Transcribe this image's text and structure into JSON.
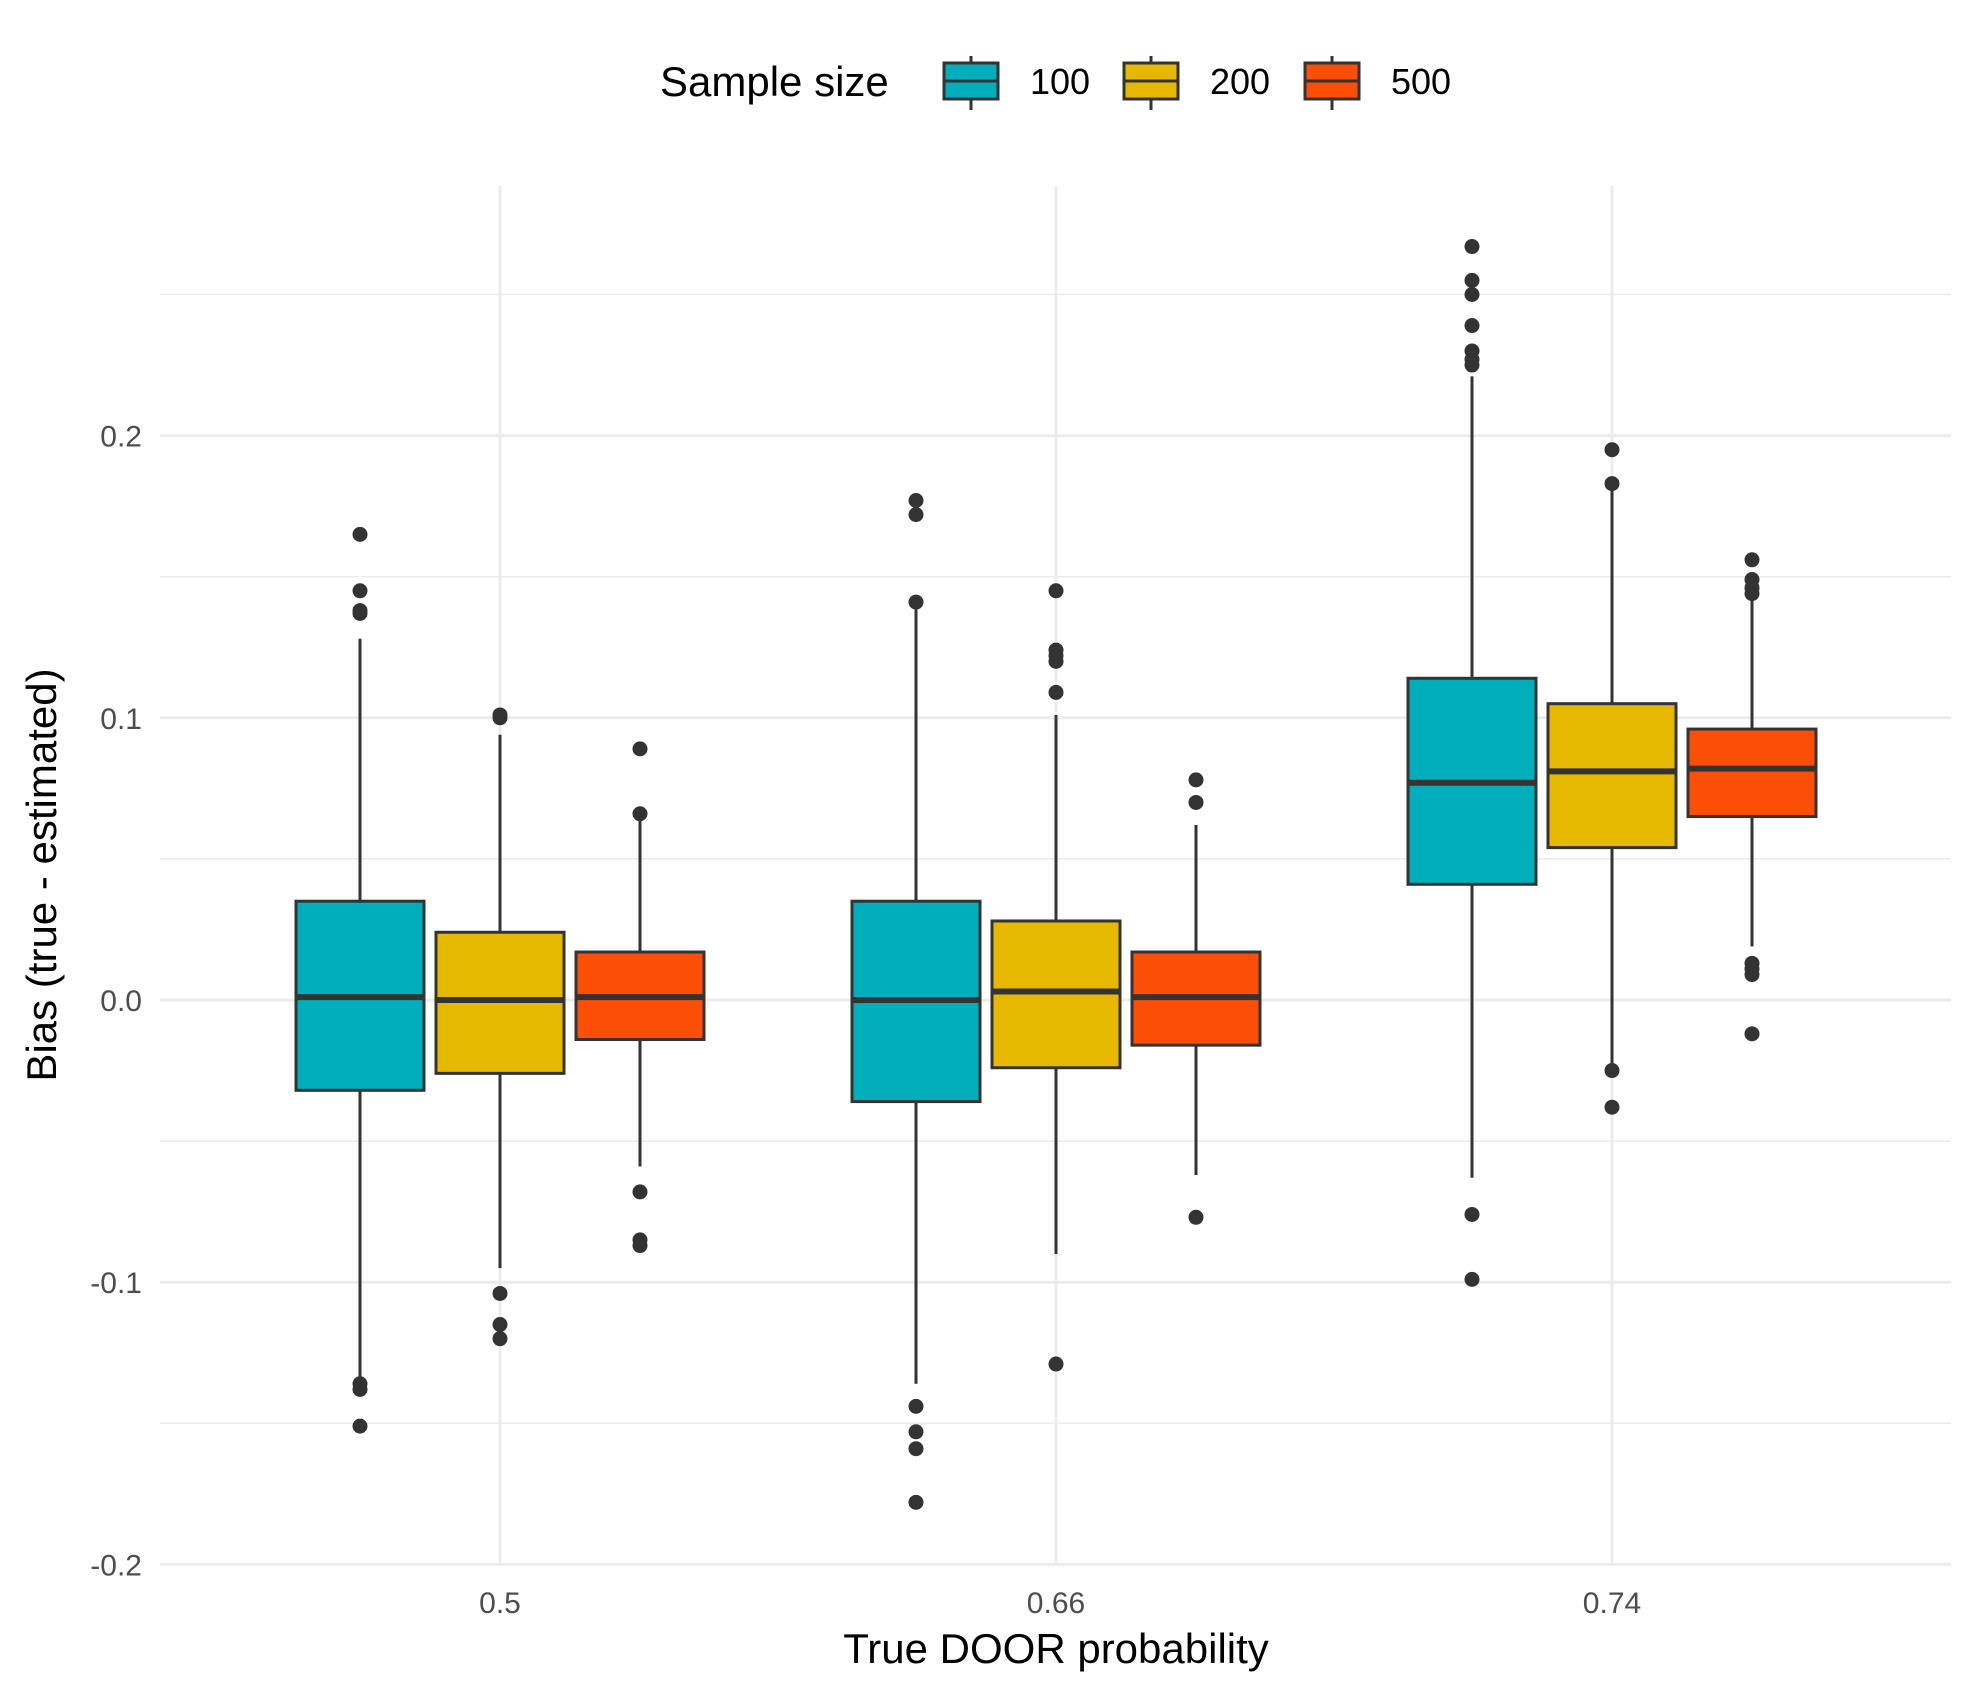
{
  "chart_data": {
    "type": "boxplot",
    "title": "",
    "xlabel": "True DOOR probability",
    "ylabel": "Bias (true - estimated)",
    "ylim": [
      -0.2,
      0.27
    ],
    "yticks": [
      -0.2,
      -0.1,
      0.0,
      0.1,
      0.2
    ],
    "ytick_labels": [
      "-0.2",
      "-0.1",
      "0.0",
      "0.1",
      "0.2"
    ],
    "categories": [
      "0.5",
      "0.66",
      "0.74"
    ],
    "grid": true,
    "legend": {
      "title": "Sample size",
      "position": "top",
      "entries": [
        "100",
        "200",
        "500"
      ]
    },
    "series": [
      {
        "name": "100",
        "color": "#00AFBB",
        "boxes": [
          {
            "q1": -0.032,
            "median": 0.001,
            "q3": 0.035,
            "whisker_low": -0.134,
            "whisker_high": 0.128,
            "outliers": [
              0.165,
              0.145,
              0.138,
              0.137,
              -0.136,
              -0.138,
              -0.151
            ]
          },
          {
            "q1": -0.036,
            "median": 0.0,
            "q3": 0.035,
            "whisker_low": -0.136,
            "whisker_high": 0.141,
            "outliers": [
              0.177,
              0.172,
              0.141,
              -0.144,
              -0.153,
              -0.159,
              -0.178
            ]
          },
          {
            "q1": 0.041,
            "median": 0.077,
            "q3": 0.114,
            "whisker_low": -0.063,
            "whisker_high": 0.221,
            "outliers": [
              0.267,
              0.255,
              0.25,
              0.239,
              0.23,
              0.227,
              0.225,
              -0.076,
              -0.099
            ]
          }
        ]
      },
      {
        "name": "200",
        "color": "#E7B800",
        "boxes": [
          {
            "q1": -0.026,
            "median": 0.0,
            "q3": 0.024,
            "whisker_low": -0.095,
            "whisker_high": 0.094,
            "outliers": [
              0.101,
              0.1,
              -0.104,
              -0.115,
              -0.12
            ]
          },
          {
            "q1": -0.024,
            "median": 0.003,
            "q3": 0.028,
            "whisker_low": -0.09,
            "whisker_high": 0.101,
            "outliers": [
              0.145,
              0.124,
              0.122,
              0.12,
              0.109,
              -0.129
            ]
          },
          {
            "q1": 0.054,
            "median": 0.081,
            "q3": 0.105,
            "whisker_low": -0.025,
            "whisker_high": 0.184,
            "outliers": [
              0.195,
              0.183,
              -0.025,
              -0.038
            ]
          }
        ]
      },
      {
        "name": "500",
        "color": "#FC4E07",
        "boxes": [
          {
            "q1": -0.014,
            "median": 0.001,
            "q3": 0.017,
            "whisker_low": -0.059,
            "whisker_high": 0.066,
            "outliers": [
              0.089,
              0.066,
              -0.068,
              -0.085,
              -0.087
            ]
          },
          {
            "q1": -0.016,
            "median": 0.001,
            "q3": 0.017,
            "whisker_low": -0.062,
            "whisker_high": 0.062,
            "outliers": [
              0.078,
              0.07,
              -0.077
            ]
          },
          {
            "q1": 0.065,
            "median": 0.082,
            "q3": 0.096,
            "whisker_low": 0.019,
            "whisker_high": 0.144,
            "outliers": [
              0.156,
              0.149,
              0.146,
              0.144,
              0.013,
              0.011,
              0.009,
              -0.012
            ]
          }
        ]
      }
    ]
  }
}
